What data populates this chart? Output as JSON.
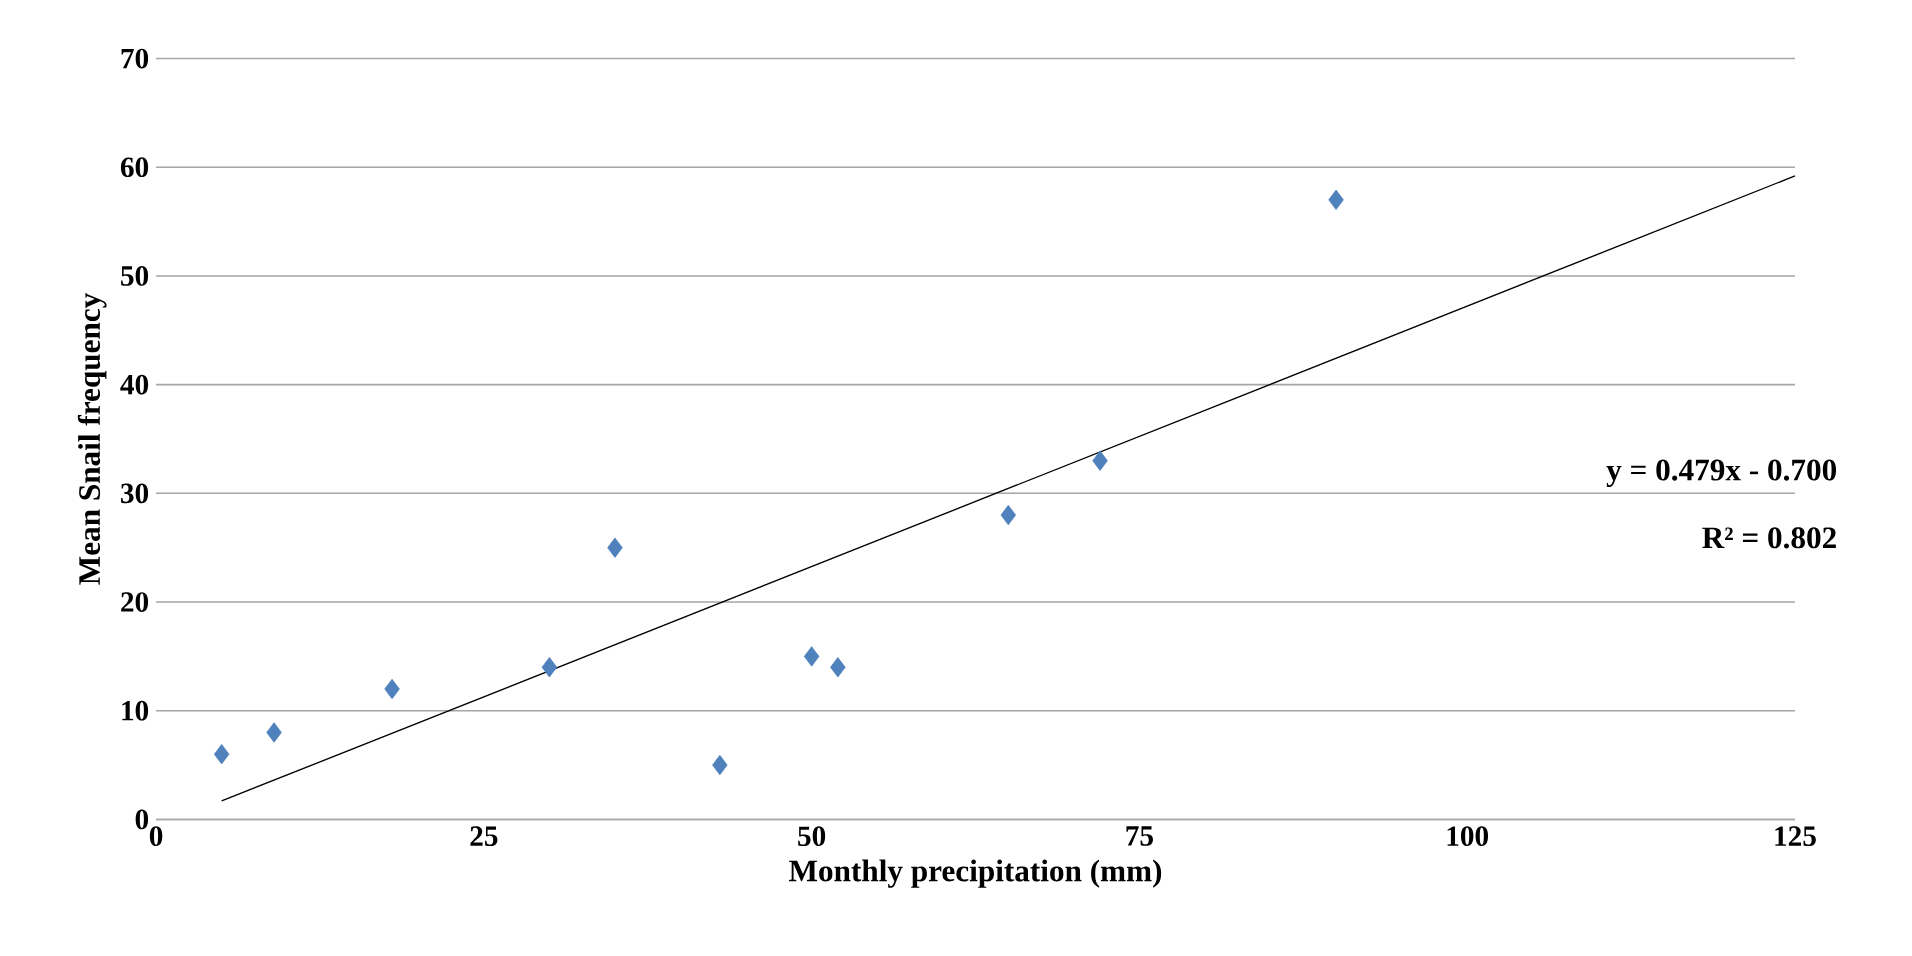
{
  "chart_data": {
    "type": "scatter",
    "xlabel": "Monthly precipitation (mm)",
    "ylabel": "Mean Snail frequency",
    "xlim": [
      0,
      125
    ],
    "xticks": [
      0,
      25,
      50,
      75,
      100,
      125
    ],
    "ylim": [
      0,
      70
    ],
    "yticks": [
      0,
      10,
      20,
      30,
      40,
      50,
      60,
      70
    ],
    "grid": "y",
    "marker": "diamond",
    "annotations": [
      "y = 0.479x - 0.700",
      "R² = 0.802"
    ],
    "series": [
      {
        "color": "#4f81bd",
        "x": [
          5,
          9,
          18,
          30,
          35,
          43,
          50,
          52,
          65,
          72,
          90
        ],
        "values": [
          6,
          8,
          12,
          14,
          25,
          5,
          15,
          14,
          28,
          33,
          57
        ]
      },
      {
        "type": "line",
        "color": "#000000",
        "marker": "none",
        "x": [
          5,
          125
        ],
        "values": [
          1.7,
          59.2
        ]
      }
    ]
  }
}
